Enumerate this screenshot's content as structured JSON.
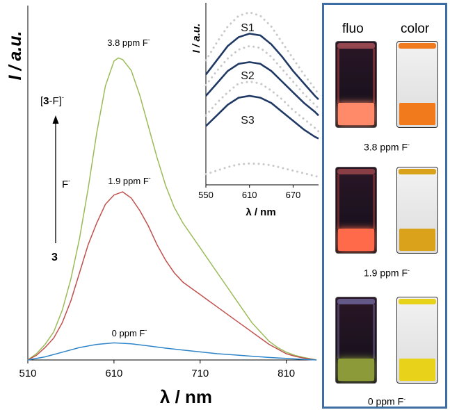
{
  "chart_data": [
    {
      "type": "line",
      "xlabel": "λ / nm",
      "ylabel": "I / a.u.",
      "xlim": [
        510,
        845
      ],
      "ylim": [
        0,
        1
      ],
      "xticks": [
        "510",
        "610",
        "710",
        "810"
      ],
      "series": [
        {
          "name": "3.8 ppm F⁻",
          "label_text": "3.8 ppm F",
          "label_sup": "-",
          "color": "#9bbb59",
          "x": [
            510,
            520,
            530,
            540,
            550,
            560,
            570,
            580,
            590,
            600,
            610,
            615,
            620,
            630,
            640,
            650,
            660,
            670,
            680,
            690,
            700,
            710,
            720,
            730,
            740,
            750,
            760,
            770,
            780,
            790,
            800,
            810,
            820,
            830,
            840,
            845
          ],
          "y": [
            0.0,
            0.02,
            0.05,
            0.09,
            0.16,
            0.26,
            0.39,
            0.55,
            0.73,
            0.88,
            0.96,
            0.97,
            0.965,
            0.93,
            0.85,
            0.75,
            0.65,
            0.56,
            0.49,
            0.44,
            0.4,
            0.36,
            0.32,
            0.28,
            0.24,
            0.2,
            0.16,
            0.12,
            0.09,
            0.06,
            0.04,
            0.025,
            0.015,
            0.008,
            0.003,
            0.0
          ]
        },
        {
          "name": "1.9 ppm F⁻",
          "label_text": "1.9 ppm F",
          "label_sup": "-",
          "color": "#c0504d",
          "x": [
            510,
            520,
            530,
            540,
            550,
            560,
            570,
            580,
            590,
            600,
            610,
            620,
            630,
            640,
            650,
            660,
            670,
            680,
            690,
            700,
            710,
            720,
            730,
            740,
            750,
            760,
            770,
            780,
            790,
            800,
            810,
            820,
            830,
            840,
            845
          ],
          "y": [
            0.0,
            0.015,
            0.04,
            0.07,
            0.12,
            0.19,
            0.28,
            0.37,
            0.44,
            0.5,
            0.53,
            0.54,
            0.52,
            0.48,
            0.43,
            0.37,
            0.32,
            0.28,
            0.25,
            0.23,
            0.21,
            0.19,
            0.17,
            0.15,
            0.13,
            0.11,
            0.09,
            0.07,
            0.05,
            0.035,
            0.02,
            0.012,
            0.006,
            0.002,
            0.0
          ]
        },
        {
          "name": "0 ppm F⁻",
          "label_text": "0 ppm F",
          "label_sup": "-",
          "color": "#2e84c8",
          "x": [
            510,
            530,
            550,
            570,
            590,
            610,
            630,
            650,
            670,
            690,
            710,
            730,
            750,
            770,
            790,
            810,
            830,
            845
          ],
          "y": [
            0.0,
            0.01,
            0.025,
            0.04,
            0.05,
            0.055,
            0.052,
            0.045,
            0.038,
            0.032,
            0.026,
            0.02,
            0.016,
            0.012,
            0.008,
            0.005,
            0.002,
            0.0
          ]
        }
      ],
      "annotations": {
        "top_text": "[",
        "top_bold": "3",
        "top_rest": "-F]",
        "top_sup": "-",
        "arrow_mid": "F",
        "arrow_mid_sup": "-",
        "bottom": "3"
      }
    },
    {
      "type": "line",
      "xlabel": "λ / nm",
      "ylabel": "I / a.u.",
      "xlim": [
        550,
        705
      ],
      "ylim": [
        0,
        1
      ],
      "xticks": [
        "550",
        "610",
        "670"
      ],
      "series": [
        {
          "name": "S1",
          "style": "solid",
          "color": "#1f3864",
          "x": [
            550,
            565,
            580,
            595,
            610,
            625,
            640,
            655,
            670,
            685,
            700,
            705
          ],
          "y": [
            0.62,
            0.7,
            0.78,
            0.83,
            0.85,
            0.84,
            0.79,
            0.72,
            0.64,
            0.57,
            0.5,
            0.48
          ]
        },
        {
          "name": "S2",
          "style": "solid",
          "color": "#1f3864",
          "x": [
            550,
            565,
            580,
            595,
            610,
            625,
            640,
            655,
            670,
            685,
            700,
            705
          ],
          "y": [
            0.5,
            0.57,
            0.64,
            0.68,
            0.69,
            0.68,
            0.64,
            0.58,
            0.52,
            0.46,
            0.41,
            0.39
          ]
        },
        {
          "name": "S3",
          "style": "solid",
          "color": "#1f3864",
          "x": [
            550,
            565,
            580,
            595,
            610,
            625,
            640,
            655,
            670,
            685,
            700,
            705
          ],
          "y": [
            0.33,
            0.39,
            0.45,
            0.49,
            0.5,
            0.49,
            0.46,
            0.41,
            0.36,
            0.31,
            0.27,
            0.26
          ]
        },
        {
          "name": "",
          "style": "dotted",
          "color": "#c8c8c8",
          "x": [
            550,
            565,
            580,
            595,
            610,
            625,
            640,
            655,
            670,
            685,
            700,
            705
          ],
          "y": [
            0.7,
            0.8,
            0.89,
            0.95,
            0.97,
            0.95,
            0.89,
            0.8,
            0.71,
            0.62,
            0.54,
            0.51
          ]
        },
        {
          "name": "",
          "style": "dotted",
          "color": "#c8c8c8",
          "x": [
            550,
            565,
            580,
            595,
            610,
            625,
            640,
            655,
            670,
            685,
            700,
            705
          ],
          "y": [
            0.56,
            0.64,
            0.71,
            0.76,
            0.78,
            0.77,
            0.72,
            0.65,
            0.58,
            0.51,
            0.45,
            0.43
          ]
        },
        {
          "name": "",
          "style": "dotted",
          "color": "#c8c8c8",
          "x": [
            550,
            565,
            580,
            595,
            610,
            625,
            640,
            655,
            670,
            685,
            700,
            705
          ],
          "y": [
            0.39,
            0.46,
            0.52,
            0.57,
            0.58,
            0.57,
            0.53,
            0.48,
            0.42,
            0.37,
            0.32,
            0.3
          ]
        },
        {
          "name": "",
          "style": "dotted",
          "color": "#c8c8c8",
          "x": [
            550,
            565,
            580,
            595,
            610,
            625,
            640,
            655,
            670,
            685,
            700,
            705
          ],
          "y": [
            0.06,
            0.08,
            0.1,
            0.115,
            0.12,
            0.118,
            0.11,
            0.095,
            0.08,
            0.065,
            0.05,
            0.045
          ]
        }
      ]
    }
  ],
  "photo_panel": {
    "columns": [
      "fluo",
      "color"
    ],
    "rows": [
      {
        "caption": "3.8 ppm F",
        "caption_sup": "-",
        "fluo_color": "#ff8a6a",
        "liquid_color": "#f07a1c"
      },
      {
        "caption": "1.9 ppm F",
        "caption_sup": "-",
        "fluo_color": "#ff6a4a",
        "liquid_color": "#d9a21a"
      },
      {
        "caption": "0 ppm F",
        "caption_sup": "-",
        "fluo_color": "#8c9a3a",
        "liquid_color": "#e8d21a"
      }
    ],
    "border_color": "#3d6fa5"
  }
}
